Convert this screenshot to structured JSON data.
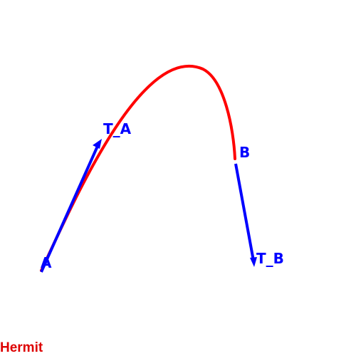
{
  "labels": {
    "point_a": "A",
    "point_b": "B",
    "tangent_a": "T_A",
    "tangent_b": "T_B"
  },
  "caption": "Hermit",
  "colors": {
    "curve": "#ff0000",
    "vectors": "#0000ff",
    "caption": "#dd0000",
    "background": "#ffffff"
  }
}
